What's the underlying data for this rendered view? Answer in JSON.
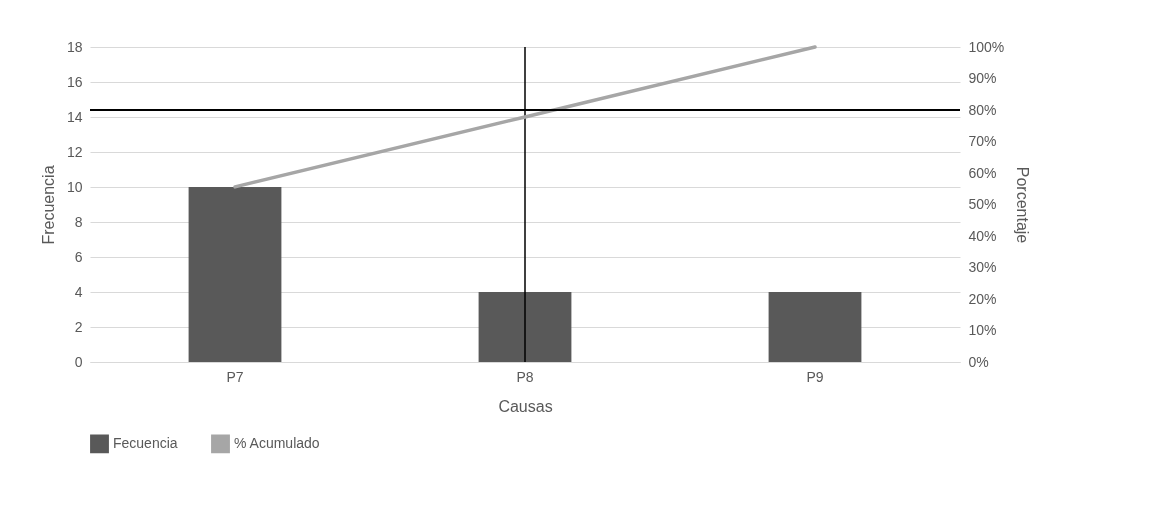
{
  "chart_data": {
    "type": "bar",
    "xlabel": "Causas",
    "ylabel": "Frecuencia",
    "y2label": "Porcentaje",
    "categories": [
      "P7",
      "P8",
      "P9"
    ],
    "series": [
      {
        "name": "Fecuencia",
        "color": "#595959",
        "values": [
          10,
          4,
          4
        ]
      },
      {
        "name": "% Acumulado",
        "type": "line",
        "axis": "y2",
        "color": "#a6a6a6",
        "values": [
          55.6,
          77.8,
          100
        ]
      }
    ],
    "ylim": [
      0,
      18
    ],
    "yticks": [
      0,
      2,
      4,
      6,
      8,
      10,
      12,
      14,
      16,
      18
    ],
    "y2lim": [
      0,
      100
    ],
    "y2ticks": [
      {
        "value": 0,
        "label": "0%"
      },
      {
        "value": 10,
        "label": "10%"
      },
      {
        "value": 20,
        "label": "20%"
      },
      {
        "value": 30,
        "label": "30%"
      },
      {
        "value": 40,
        "label": "40%"
      },
      {
        "value": 50,
        "label": "50%"
      },
      {
        "value": 60,
        "label": "60%"
      },
      {
        "value": 70,
        "label": "70%"
      },
      {
        "value": 80,
        "label": "80%"
      },
      {
        "value": 90,
        "label": "90%"
      },
      {
        "value": 100,
        "label": "100%"
      }
    ],
    "ref_lines": [
      {
        "axis": "x",
        "value": "P8",
        "color": "#000000"
      },
      {
        "axis": "y2",
        "value": 80,
        "color": "#000000"
      }
    ],
    "grid": "y",
    "legend": "bottom",
    "line_style": "solid"
  }
}
